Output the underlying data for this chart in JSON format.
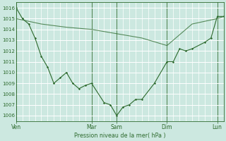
{
  "xlabel": "Pression niveau de la mer( hPa )",
  "bg_color": "#cce8e0",
  "grid_color": "#b8ddd5",
  "line_color": "#2d6a2d",
  "ylim": [
    1005.5,
    1016.5
  ],
  "yticks": [
    1006,
    1007,
    1008,
    1009,
    1010,
    1011,
    1012,
    1013,
    1014,
    1015,
    1016
  ],
  "day_labels": [
    "Ven",
    "",
    "Mar",
    "Sam",
    "",
    "Dim",
    "",
    "Lun"
  ],
  "day_positions": [
    0,
    6,
    12,
    16,
    20,
    24,
    28,
    32
  ],
  "vline_positions": [
    0,
    12,
    16,
    24,
    32
  ],
  "xlim": [
    0,
    33
  ],
  "series1_x": [
    0,
    1,
    2,
    3,
    4,
    5,
    6,
    7,
    8,
    9,
    10,
    11,
    12,
    14,
    15,
    16,
    17,
    18,
    19,
    20,
    22,
    24,
    25,
    26,
    27,
    28,
    30,
    31,
    32,
    33
  ],
  "series1_y": [
    1016,
    1015,
    1014.5,
    1013.2,
    1011.5,
    1010.5,
    1009.0,
    1009.5,
    1010.0,
    1009.0,
    1008.5,
    1008.8,
    1009.0,
    1007.2,
    1007.0,
    1006.0,
    1006.8,
    1007.0,
    1007.5,
    1007.5,
    1009.0,
    1011.0,
    1011.0,
    1012.2,
    1012.0,
    1012.2,
    1012.8,
    1013.2,
    1015.2,
    1015.2
  ],
  "series2_x": [
    0,
    4,
    8,
    12,
    16,
    20,
    24,
    28,
    32,
    33
  ],
  "series2_y": [
    1015.0,
    1014.5,
    1014.2,
    1014.0,
    1013.6,
    1013.2,
    1012.5,
    1014.5,
    1015.0,
    1015.2
  ]
}
